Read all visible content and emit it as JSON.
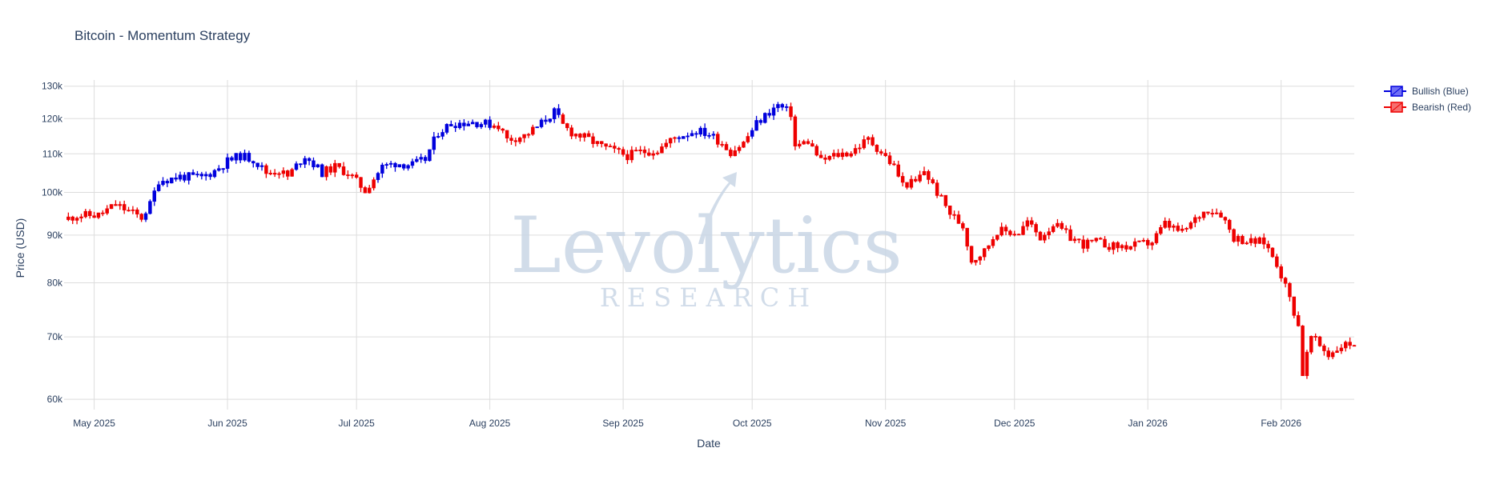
{
  "chart_data": {
    "type": "candlestick",
    "title": "Bitcoin - Momentum Strategy",
    "xlabel": "Date",
    "ylabel": "Price (USD)",
    "y_scale": "log",
    "ylim": [
      58500,
      132000
    ],
    "xlim": [
      "2025-04-24",
      "2026-02-18"
    ],
    "grid": true,
    "legend_position": "top-right",
    "y_ticks": [
      {
        "value": 60000,
        "label": "60k"
      },
      {
        "value": 70000,
        "label": "70k"
      },
      {
        "value": 80000,
        "label": "80k"
      },
      {
        "value": 90000,
        "label": "90k"
      },
      {
        "value": 100000,
        "label": "100k"
      },
      {
        "value": 110000,
        "label": "110k"
      },
      {
        "value": 120000,
        "label": "120k"
      },
      {
        "value": 130000,
        "label": "130k"
      }
    ],
    "x_ticks": [
      {
        "date": "2025-05-01",
        "label": "May 2025"
      },
      {
        "date": "2025-06-01",
        "label": "Jun 2025"
      },
      {
        "date": "2025-07-01",
        "label": "Jul 2025"
      },
      {
        "date": "2025-08-01",
        "label": "Aug 2025"
      },
      {
        "date": "2025-09-01",
        "label": "Sep 2025"
      },
      {
        "date": "2025-10-01",
        "label": "Oct 2025"
      },
      {
        "date": "2025-11-01",
        "label": "Nov 2025"
      },
      {
        "date": "2025-12-01",
        "label": "Dec 2025"
      },
      {
        "date": "2026-01-01",
        "label": "Jan 2026"
      },
      {
        "date": "2026-02-01",
        "label": "Feb 2026"
      }
    ],
    "series": [
      {
        "name": "Bullish (Blue)",
        "color": "#0000dd"
      },
      {
        "name": "Bearish (Red)",
        "color": "#ee0000"
      }
    ],
    "close_path": [
      [
        "2025-04-24",
        93500
      ],
      [
        "2025-04-27",
        94500
      ],
      [
        "2025-05-02",
        94500
      ],
      [
        "2025-05-06",
        97000
      ],
      [
        "2025-05-09",
        95500
      ],
      [
        "2025-05-12",
        94000
      ],
      [
        "2025-05-14",
        97000
      ],
      [
        "2025-05-16",
        103000
      ],
      [
        "2025-05-19",
        103500
      ],
      [
        "2025-05-21",
        104000
      ],
      [
        "2025-05-26",
        103800
      ],
      [
        "2025-05-29",
        105500
      ],
      [
        "2025-06-01",
        108000
      ],
      [
        "2025-06-04",
        109500
      ],
      [
        "2025-06-07",
        108500
      ],
      [
        "2025-06-10",
        105000
      ],
      [
        "2025-06-13",
        105500
      ],
      [
        "2025-06-15",
        104000
      ],
      [
        "2025-06-19",
        109500
      ],
      [
        "2025-06-23",
        105000
      ],
      [
        "2025-06-26",
        106500
      ],
      [
        "2025-06-29",
        105000
      ],
      [
        "2025-07-03",
        100500
      ],
      [
        "2025-07-07",
        106500
      ],
      [
        "2025-07-10",
        107500
      ],
      [
        "2025-07-14",
        107000
      ],
      [
        "2025-07-17",
        108500
      ],
      [
        "2025-07-20",
        116000
      ],
      [
        "2025-07-23",
        118500
      ],
      [
        "2025-07-28",
        119000
      ],
      [
        "2025-08-03",
        118000
      ],
      [
        "2025-08-05",
        114000
      ],
      [
        "2025-08-09",
        115000
      ],
      [
        "2025-08-12",
        117500
      ],
      [
        "2025-08-16",
        122000
      ],
      [
        "2025-08-18",
        118000
      ],
      [
        "2025-08-20",
        116000
      ],
      [
        "2025-08-24",
        114000
      ],
      [
        "2025-08-27",
        112000
      ],
      [
        "2025-09-02",
        109500
      ],
      [
        "2025-09-05",
        110500
      ],
      [
        "2025-09-09",
        111000
      ],
      [
        "2025-09-13",
        114500
      ],
      [
        "2025-09-18",
        116500
      ],
      [
        "2025-09-21",
        115500
      ],
      [
        "2025-09-24",
        113000
      ],
      [
        "2025-09-26",
        110500
      ],
      [
        "2025-09-29",
        113000
      ],
      [
        "2025-10-02",
        118500
      ],
      [
        "2025-10-05",
        122000
      ],
      [
        "2025-10-07",
        124000
      ],
      [
        "2025-10-10",
        121500
      ],
      [
        "2025-10-11",
        112000
      ],
      [
        "2025-10-14",
        113500
      ],
      [
        "2025-10-17",
        108000
      ],
      [
        "2025-10-20",
        109500
      ],
      [
        "2025-10-24",
        110500
      ],
      [
        "2025-10-28",
        114000
      ],
      [
        "2025-10-31",
        110500
      ],
      [
        "2025-11-03",
        106500
      ],
      [
        "2025-11-05",
        102000
      ],
      [
        "2025-11-08",
        102500
      ],
      [
        "2025-11-10",
        105500
      ],
      [
        "2025-11-13",
        100000
      ],
      [
        "2025-11-16",
        95000
      ],
      [
        "2025-11-19",
        92000
      ],
      [
        "2025-11-21",
        84500
      ],
      [
        "2025-11-24",
        86500
      ],
      [
        "2025-11-27",
        91000
      ],
      [
        "2025-12-02",
        90500
      ],
      [
        "2025-12-04",
        93000
      ],
      [
        "2025-12-07",
        89500
      ],
      [
        "2025-12-10",
        92500
      ],
      [
        "2025-12-14",
        89500
      ],
      [
        "2025-12-17",
        88000
      ],
      [
        "2025-12-20",
        88500
      ],
      [
        "2025-12-24",
        87500
      ],
      [
        "2025-12-28",
        87500
      ],
      [
        "2026-01-02",
        88500
      ],
      [
        "2026-01-05",
        92500
      ],
      [
        "2026-01-09",
        90500
      ],
      [
        "2026-01-13",
        94500
      ],
      [
        "2026-01-15",
        96000
      ],
      [
        "2026-01-18",
        95000
      ],
      [
        "2026-01-21",
        89500
      ],
      [
        "2026-01-25",
        88500
      ],
      [
        "2026-01-28",
        88500
      ],
      [
        "2026-01-31",
        84000
      ],
      [
        "2026-02-03",
        77000
      ],
      [
        "2026-02-05",
        72000
      ],
      [
        "2026-02-06",
        64000
      ],
      [
        "2026-02-08",
        70000
      ],
      [
        "2026-02-12",
        67000
      ],
      [
        "2026-02-15",
        68500
      ],
      [
        "2026-02-18",
        69000
      ]
    ],
    "bullish_periods": [
      [
        "2025-05-13",
        "2025-06-09"
      ],
      [
        "2025-06-17",
        "2025-06-23"
      ],
      [
        "2025-07-06",
        "2025-08-01"
      ],
      [
        "2025-08-12",
        "2025-08-17"
      ],
      [
        "2025-09-14",
        "2025-09-22"
      ],
      [
        "2025-10-01",
        "2025-10-09"
      ]
    ]
  },
  "watermark": {
    "main": "Levolytics",
    "sub": "RESEARCH"
  }
}
